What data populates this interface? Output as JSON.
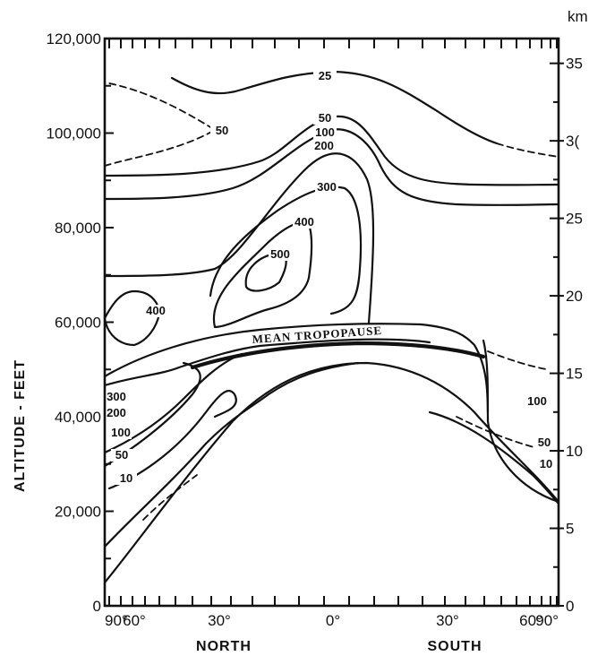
{
  "chart_data": {
    "type": "contour",
    "left_axis": {
      "label": "ALTITUDE - FEET",
      "range": [
        0,
        120000
      ],
      "ticks": [
        "0",
        "20,000",
        "40,000",
        "60,000",
        "80,000",
        "100,000",
        "120,000"
      ],
      "tick_values": [
        0,
        20000,
        40000,
        60000,
        80000,
        100000,
        120000
      ]
    },
    "right_axis": {
      "unit": "km",
      "ticks": [
        "0",
        "5",
        "10",
        "15",
        "20",
        "25",
        "3(",
        "35"
      ],
      "tick_values": [
        0,
        5,
        10,
        15,
        20,
        25,
        30,
        35
      ]
    },
    "x_axis": {
      "ticks": [
        "90°",
        "60°",
        "30°",
        "0°",
        "30°",
        "60°",
        "90°"
      ],
      "tick_values": [
        -90,
        -60,
        -30,
        0,
        30,
        60,
        90
      ],
      "region_labels": [
        "NORTH",
        "SOUTH"
      ]
    },
    "annotation": "MEAN TROPOPAUSE",
    "contours": [
      {
        "level": "25",
        "label_at": [
          0,
          112000
        ],
        "points": [
          [
            -30,
            111000
          ],
          [
            -20,
            107000
          ],
          [
            -10,
            109000
          ],
          [
            0,
            112000
          ],
          [
            12,
            112000
          ],
          [
            25,
            106000
          ],
          [
            40,
            99000
          ],
          [
            55,
            97000
          ]
        ]
      },
      {
        "level": "50",
        "label_at": [
          -35,
          101000
        ],
        "dashed_ends": true,
        "points": [
          [
            -90,
            93000
          ],
          [
            -70,
            95000
          ],
          [
            -50,
            98000
          ],
          [
            -40,
            101000
          ],
          [
            -50,
            105000
          ],
          [
            -70,
            109000
          ],
          [
            -90,
            110000
          ]
        ]
      },
      {
        "level": "50",
        "label_at": [
          0,
          104000
        ],
        "points": [
          [
            -90,
            91000
          ],
          [
            -60,
            92000
          ],
          [
            -40,
            93000
          ],
          [
            -20,
            96000
          ],
          [
            -5,
            103500
          ],
          [
            5,
            103500
          ],
          [
            15,
            100000
          ],
          [
            25,
            94000
          ],
          [
            35,
            89000
          ],
          [
            55,
            87000
          ],
          [
            80,
            86000
          ],
          [
            90,
            86000
          ]
        ]
      },
      {
        "level": "100",
        "label_at": [
          0,
          101000
        ],
        "points": [
          [
            -90,
            86000
          ],
          [
            -60,
            86000
          ],
          [
            -40,
            88000
          ],
          [
            -25,
            91000
          ],
          [
            -10,
            99000
          ],
          [
            0,
            101000
          ],
          [
            10,
            99000
          ],
          [
            20,
            92000
          ],
          [
            30,
            84000
          ],
          [
            45,
            80000
          ],
          [
            60,
            80000
          ],
          [
            90,
            79000
          ]
        ]
      },
      {
        "level": "200",
        "label_at": [
          -3,
          97000
        ],
        "points": [
          [
            -90,
            70000
          ],
          [
            -60,
            71000
          ],
          [
            -45,
            72000
          ],
          [
            -30,
            78000
          ],
          [
            -20,
            88000
          ],
          [
            -10,
            96000
          ],
          [
            0,
            97000
          ],
          [
            8,
            95000
          ],
          [
            12,
            85000
          ],
          [
            15,
            70000
          ],
          [
            16,
            60000
          ]
        ]
      },
      {
        "level": "300",
        "label_at": [
          -3,
          89000
        ],
        "points": [
          [
            -40,
            63000
          ],
          [
            -35,
            70000
          ],
          [
            -25,
            78000
          ],
          [
            -15,
            85000
          ],
          [
            -5,
            89000
          ],
          [
            3,
            88000
          ],
          [
            8,
            80000
          ],
          [
            10,
            68000
          ],
          [
            8,
            60000
          ],
          [
            0,
            57000
          ]
        ]
      },
      {
        "level": "400",
        "label_at": [
          -10,
          81000
        ],
        "points": [
          [
            -35,
            59000
          ],
          [
            -30,
            66000
          ],
          [
            -25,
            72000
          ],
          [
            -15,
            78000
          ],
          [
            -9,
            81000
          ],
          [
            -6,
            76000
          ],
          [
            -5,
            68000
          ],
          [
            -10,
            62000
          ],
          [
            -20,
            59000
          ],
          [
            -35,
            59000
          ]
        ]
      },
      {
        "level": "500",
        "label_at": [
          -18,
          72000
        ],
        "closed": true,
        "points": [
          [
            -25,
            69000
          ],
          [
            -22,
            73000
          ],
          [
            -17,
            74000
          ],
          [
            -14,
            72000
          ],
          [
            -15,
            68000
          ],
          [
            -20,
            66000
          ],
          [
            -25,
            69000
          ]
        ]
      },
      {
        "level": "400",
        "label_at": [
          -68,
          63000
        ],
        "closed": true,
        "points": [
          [
            -88,
            60000
          ],
          [
            -80,
            66000
          ],
          [
            -70,
            67000
          ],
          [
            -66,
            63000
          ],
          [
            -72,
            58000
          ],
          [
            -82,
            56000
          ],
          [
            -88,
            60000
          ]
        ]
      }
    ]
  }
}
